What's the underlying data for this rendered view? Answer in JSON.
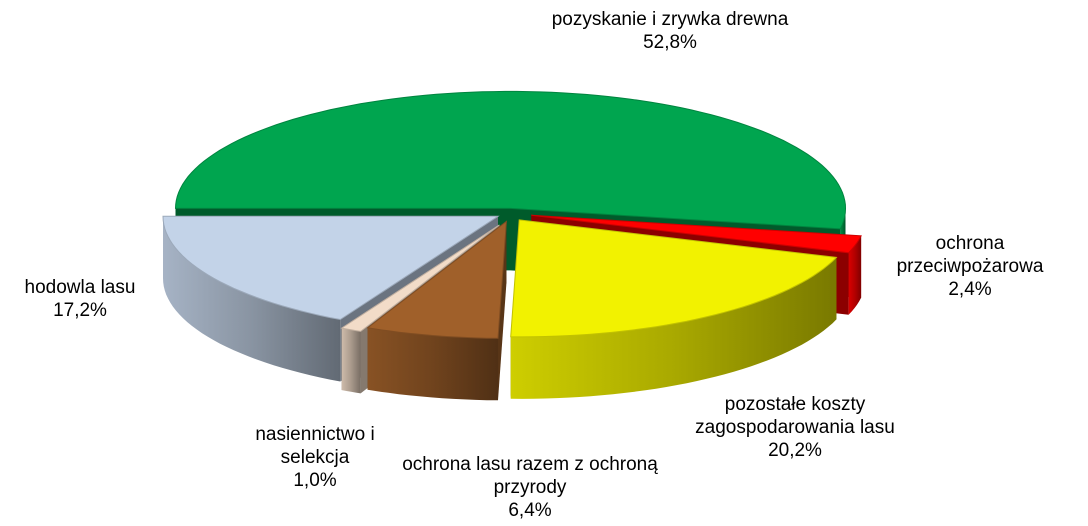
{
  "chart_data": {
    "type": "pie",
    "categories": [
      "pozyskanie i zrywka drewna",
      "ochrona przeciwpożarowa",
      "pozostałe koszty zagospodarowania lasu",
      "ochrona lasu razem z ochroną przyrody",
      "nasiennictwo i selekcja",
      "hodowla lasu"
    ],
    "values": [
      52.8,
      2.4,
      20.2,
      6.4,
      1.0,
      17.2
    ],
    "value_labels": [
      "52,8%",
      "2,4%",
      "20,2%",
      "6,4%",
      "1,0%",
      "17,2%"
    ],
    "colors": [
      "#00a54f",
      "#ff0000",
      "#f2f200",
      "#a0602a",
      "#f2dcc8",
      "#c3d3e8"
    ]
  }
}
